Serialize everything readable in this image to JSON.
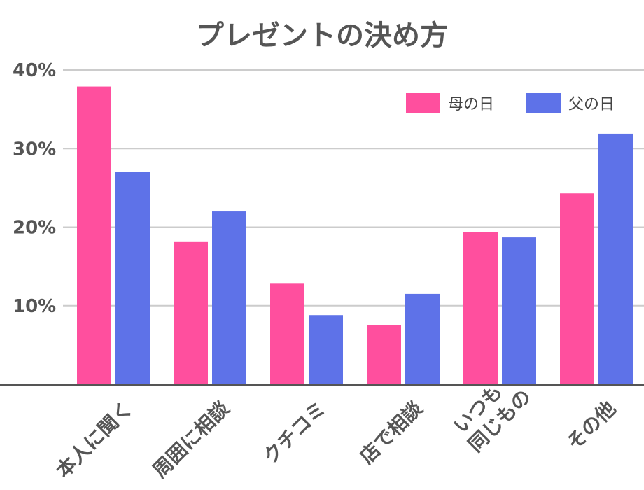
{
  "chart_data": {
    "type": "bar",
    "title": "プレゼントの決め方",
    "xlabel": "",
    "ylabel": "",
    "ylim": [
      0,
      40
    ],
    "yticks": [
      10,
      20,
      30,
      40
    ],
    "ytick_labels": [
      "10%",
      "20%",
      "30%",
      "40%"
    ],
    "grid": true,
    "legend_position": "top-right",
    "categories": [
      [
        "本人に聞く"
      ],
      [
        "周囲に相談"
      ],
      [
        "クチコミ"
      ],
      [
        "店で相談"
      ],
      [
        "いつも",
        "同じもの"
      ],
      [
        "その他"
      ]
    ],
    "series": [
      {
        "name": "母の日",
        "color": "#ff4f9e",
        "values": [
          37.9,
          18.1,
          12.8,
          7.5,
          19.4,
          24.3
        ]
      },
      {
        "name": "父の日",
        "color": "#5e72e8",
        "values": [
          27.0,
          22.0,
          8.8,
          11.5,
          18.7,
          31.9
        ]
      }
    ]
  }
}
